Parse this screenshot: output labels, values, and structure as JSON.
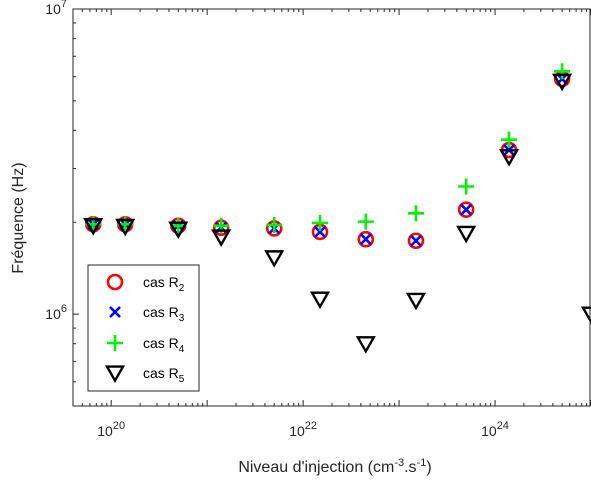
{
  "chart_data": {
    "type": "scatter",
    "xlabel": {
      "base": "Niveau d'injection (cm",
      "sup1": "-3",
      "mid": ".s",
      "sup2": "-1",
      "end": ")"
    },
    "ylabel": "Fréquence (Hz)",
    "x_scale": "log",
    "y_scale": "log",
    "xlim": [
      4e+19,
      1e+25
    ],
    "ylim": [
      500000,
      10000000
    ],
    "x_ticks": [
      {
        "value": 1e+20,
        "base": "10",
        "exp": "20"
      },
      {
        "value": 1e+22,
        "base": "10",
        "exp": "22"
      },
      {
        "value": 1e+24,
        "base": "10",
        "exp": "24"
      }
    ],
    "y_ticks": [
      {
        "value": 1000000,
        "base": "10",
        "exp": "6"
      },
      {
        "value": 10000000,
        "base": "10",
        "exp": "7"
      }
    ],
    "legend": {
      "position": "bottom-left"
    },
    "x": [
      6.5e+19,
      1.4e+20,
      5e+20,
      1.4e+21,
      5e+21,
      1.5e+22,
      4.5e+22,
      1.5e+23,
      5e+23,
      1.4e+24,
      5e+24,
      1e+25
    ],
    "series": [
      {
        "name": "cas R",
        "sub": "2",
        "marker": "circle",
        "color": "#ff0000",
        "values": [
          1970000,
          1970000,
          1950000,
          1920000,
          1910000,
          1860000,
          1760000,
          1740000,
          2200000,
          3450000,
          5900000,
          null
        ]
      },
      {
        "name": "cas R",
        "sub": "3",
        "marker": "x",
        "color": "#0000ff",
        "values": [
          1970000,
          1970000,
          1950000,
          1920000,
          1910000,
          1860000,
          1760000,
          1740000,
          2200000,
          3450000,
          5900000,
          null
        ]
      },
      {
        "name": "cas R",
        "sub": "4",
        "marker": "plus",
        "color": "#00ee00",
        "values": [
          1970000,
          1970000,
          1950000,
          1950000,
          1960000,
          1990000,
          2010000,
          2140000,
          2620000,
          3730000,
          6250000,
          null
        ]
      },
      {
        "name": "cas R",
        "sub": "5",
        "marker": "triangle-down",
        "color": "#000000",
        "values": [
          1950000,
          1940000,
          1900000,
          1790000,
          1530000,
          1120000,
          800000,
          1110000,
          1840000,
          3280000,
          5800000,
          1000000
        ]
      }
    ]
  }
}
